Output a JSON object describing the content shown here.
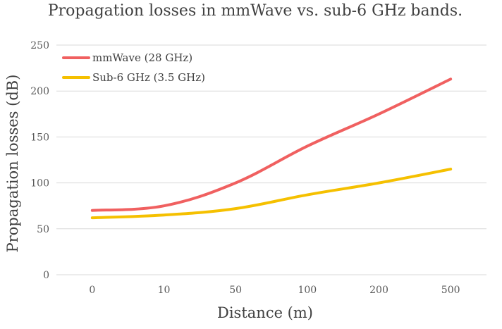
{
  "chart_data": {
    "type": "line",
    "title": "Propagation losses in mmWave vs. sub-6 GHz bands.",
    "xlabel": "Distance (m)",
    "ylabel": "Propagation losses (dB)",
    "categories": [
      "0",
      "10",
      "50",
      "100",
      "200",
      "500"
    ],
    "ylim": [
      0,
      250
    ],
    "yticks": [
      0,
      50,
      100,
      150,
      200,
      250
    ],
    "grid": true,
    "legend_position": "top-left",
    "series": [
      {
        "name": "mmWave (28 GHz)",
        "color": "#f06060",
        "values": [
          70,
          75,
          100,
          140,
          175,
          213
        ]
      },
      {
        "name": "Sub-6 GHz (3.5 GHz)",
        "color": "#f5c000",
        "values": [
          62,
          65,
          72,
          87,
          100,
          115
        ]
      }
    ]
  }
}
